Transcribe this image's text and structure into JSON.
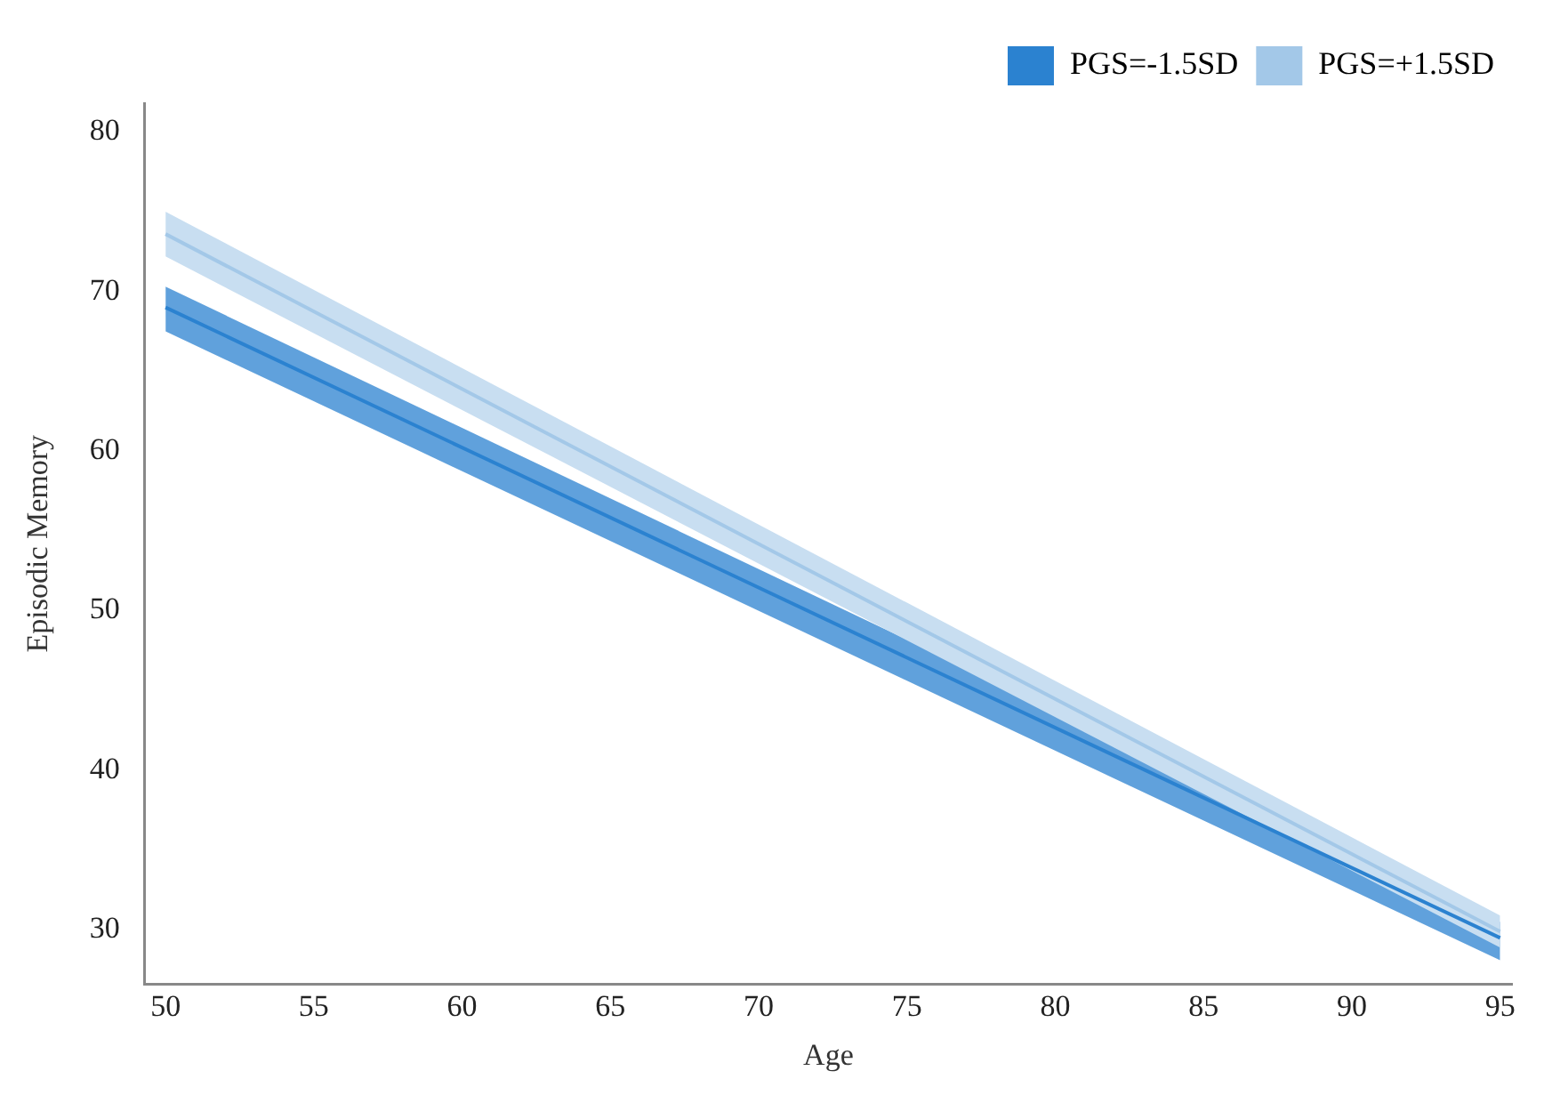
{
  "chart_data": {
    "type": "line",
    "xlabel": "Age",
    "ylabel": "Episodic Memory",
    "x": [
      50,
      95
    ],
    "series": [
      {
        "name": "PGS=-1.5SD",
        "color": "#2b82d0",
        "values": [
          69.0,
          29.5
        ],
        "lower": [
          67.5,
          28.1
        ],
        "upper": [
          70.3,
          30.5
        ]
      },
      {
        "name": "PGS=+1.5SD",
        "color": "#a3c8e8",
        "values": [
          73.6,
          29.9
        ],
        "lower": [
          72.2,
          28.9
        ],
        "upper": [
          75.0,
          30.9
        ]
      }
    ],
    "xlim": [
      49.3,
      95.4
    ],
    "xticks": [
      50,
      55,
      60,
      65,
      70,
      75,
      80,
      85,
      90,
      95
    ],
    "ylim": [
      26.6,
      81.8
    ],
    "yticks": [
      30,
      40,
      50,
      60,
      70,
      80
    ],
    "grid": false,
    "legend": "top right",
    "marker": "none",
    "line_style": "solid"
  }
}
